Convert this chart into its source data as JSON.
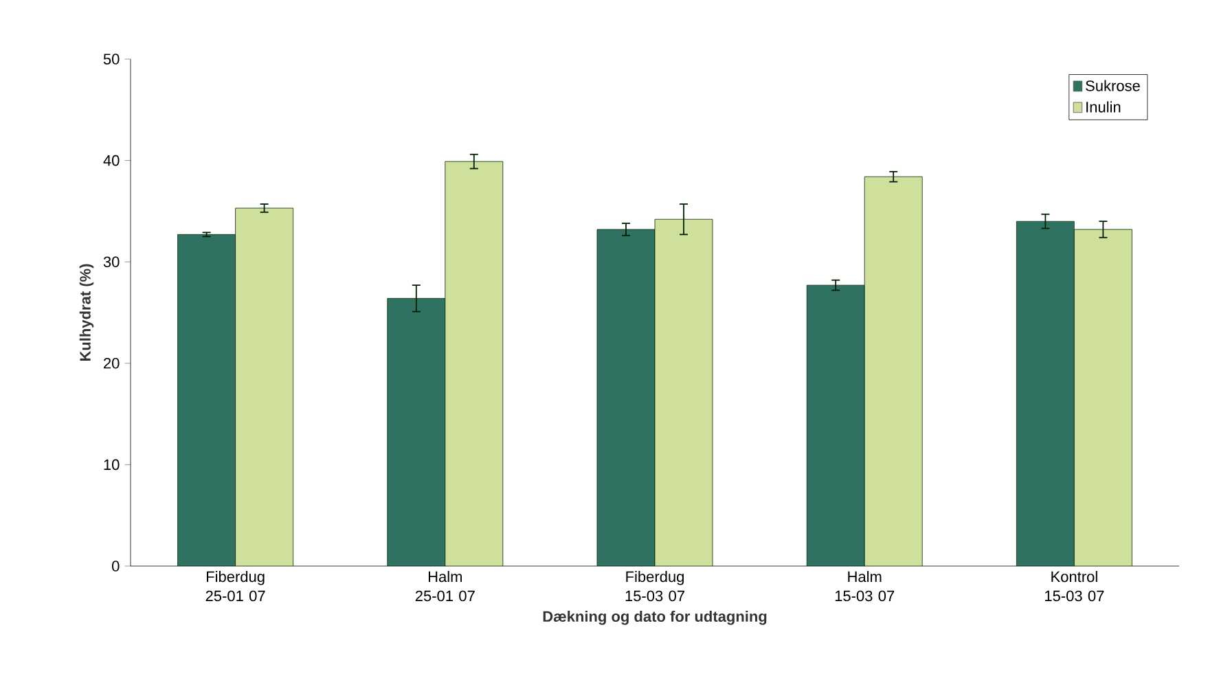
{
  "chart_data": {
    "type": "bar",
    "xlabel": "Dækning og dato for udtagning",
    "ylabel": "Kulhydrat (%)",
    "categories": [
      "Fiberdug 25-01 07",
      "Halm 25-01 07",
      "Fiberdug 15-03 07",
      "Halm 15-03 07",
      "Kontrol 15-03 07"
    ],
    "series": [
      {
        "name": "Sukrose",
        "color": "#2f7261",
        "values": [
          32.7,
          26.4,
          33.2,
          27.7,
          34.0
        ],
        "errors": [
          0.2,
          1.3,
          0.6,
          0.5,
          0.7
        ]
      },
      {
        "name": "Inulin",
        "color": "#cfe09c",
        "values": [
          35.3,
          39.9,
          34.2,
          38.4,
          33.2
        ],
        "errors": [
          0.4,
          0.7,
          1.5,
          0.5,
          0.8
        ]
      }
    ],
    "ylim": [
      0,
      50
    ],
    "yticks": [
      0,
      10,
      20,
      30,
      40,
      50
    ],
    "legend": "top right"
  }
}
